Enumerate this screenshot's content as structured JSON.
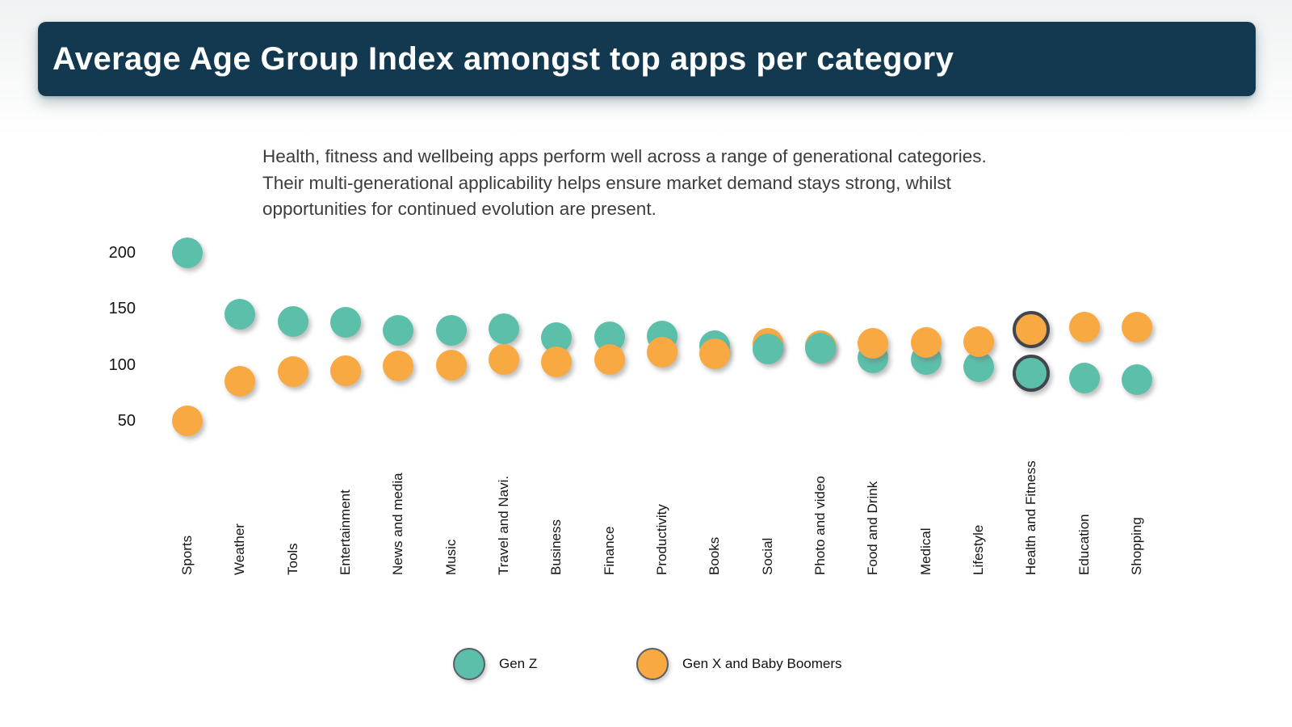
{
  "header": {
    "title": "Average Age Group Index amongst top apps per category"
  },
  "description": "Health, fitness and wellbeing apps perform well across a range of generational categories. Their multi-generational applicability helps ensure market demand stays strong, whilst opportunities for continued evolution are present.",
  "colors": {
    "header_bg": "#12394F",
    "gen_z": "#5CBFA9",
    "gen_x": "#F8A942",
    "highlight_ring": "#41464D",
    "legend_ring": "#5A5F66",
    "text_dark": "#141414"
  },
  "legend": [
    {
      "label": "Gen Z",
      "color": "#5CBFA9"
    },
    {
      "label": "Gen X and Baby Boomers",
      "color": "#F8A942"
    }
  ],
  "chart_data": {
    "type": "scatter",
    "title": "Average Age Group Index amongst top apps per category",
    "xlabel": "",
    "ylabel": "",
    "yticks": [
      200,
      150,
      100,
      50
    ],
    "ylim": [
      35,
      215
    ],
    "grid": false,
    "legend_position": "bottom",
    "highlighted_category": "Health and Fitness",
    "categories": [
      "Sports",
      "Weather",
      "Tools",
      "Entertainment",
      "News and media",
      "Music",
      "Travel and Navi.",
      "Business",
      "Finance",
      "Productivity",
      "Books",
      "Social",
      "Photo and video",
      "Food and Drink",
      "Medical",
      "Lifestyle",
      "Health and Fitness",
      "Education",
      "Shopping"
    ],
    "series": [
      {
        "name": "Gen Z",
        "color": "#5CBFA9",
        "values": [
          200,
          145,
          139,
          138,
          131,
          131,
          132,
          124,
          125,
          126,
          117,
          114,
          115,
          106,
          105,
          98,
          92,
          88,
          87
        ]
      },
      {
        "name": "Gen X and Baby Boomers",
        "color": "#F8A942",
        "values": [
          50,
          85,
          94,
          95,
          99,
          100,
          105,
          103,
          105,
          111,
          110,
          119,
          117,
          119,
          120,
          121,
          131,
          134,
          134
        ]
      }
    ],
    "front_series_per_category": [
      "x",
      "x",
      "x",
      "x",
      "x",
      "x",
      "x",
      "x",
      "x",
      "x",
      "x",
      "z",
      "z",
      "x",
      "x",
      "x",
      "x",
      "x",
      "x"
    ]
  }
}
